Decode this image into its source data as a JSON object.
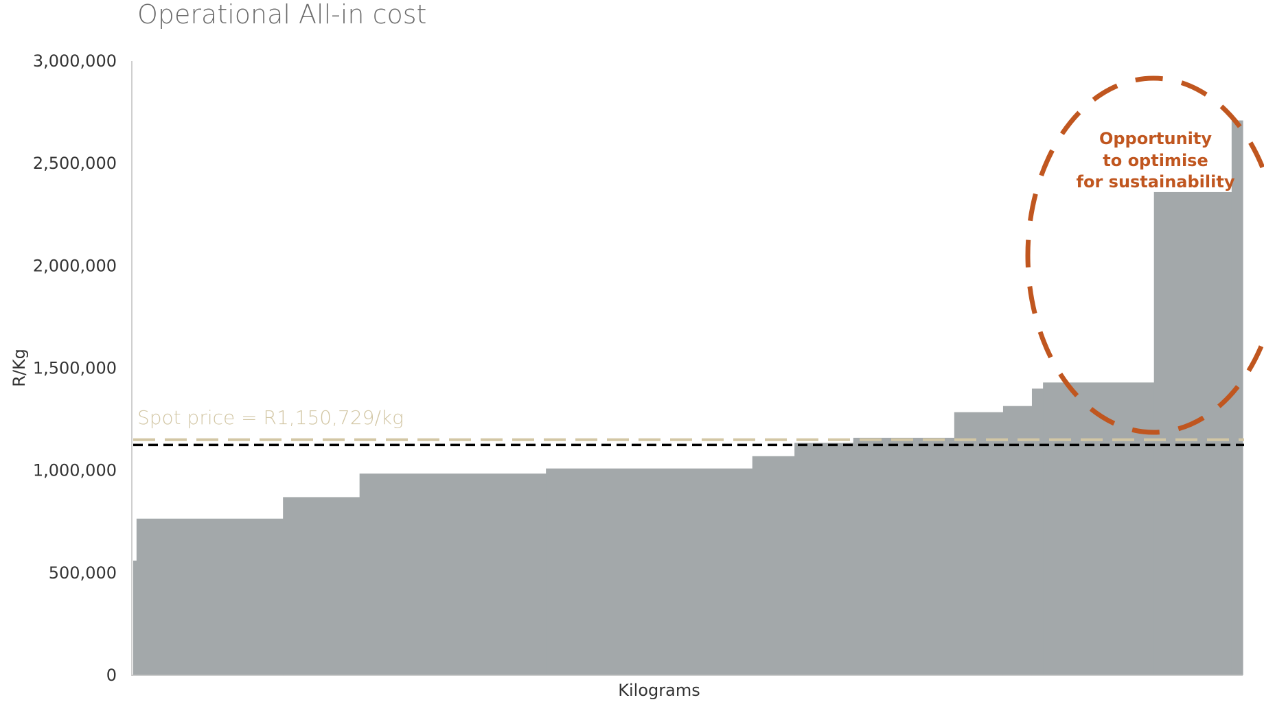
{
  "chart_data": {
    "type": "area",
    "title": "Operational All-in cost",
    "xlabel": "Kilograms",
    "ylabel": "R/Kg",
    "ylim": [
      0,
      3000000
    ],
    "xlim": [
      0,
      100
    ],
    "yticks": [
      "0",
      "500,000",
      "1,000,000",
      "1,500,000",
      "2,000,000",
      "2,500,000",
      "3,000,000"
    ],
    "ytick_values": [
      0,
      500000,
      1000000,
      1500000,
      2000000,
      2500000,
      3000000
    ],
    "grid": false,
    "series": [
      {
        "steps": [
          {
            "x0": 0.0,
            "x1": 0.3,
            "y": 560000
          },
          {
            "x0": 0.3,
            "x1": 13.5,
            "y": 765000
          },
          {
            "x0": 13.5,
            "x1": 20.4,
            "y": 870000
          },
          {
            "x0": 20.4,
            "x1": 37.2,
            "y": 985000
          },
          {
            "x0": 37.2,
            "x1": 55.8,
            "y": 1010000
          },
          {
            "x0": 55.8,
            "x1": 59.6,
            "y": 1070000
          },
          {
            "x0": 59.6,
            "x1": 64.9,
            "y": 1135000
          },
          {
            "x0": 64.9,
            "x1": 74.0,
            "y": 1160000
          },
          {
            "x0": 74.0,
            "x1": 78.4,
            "y": 1285000
          },
          {
            "x0": 78.4,
            "x1": 81.0,
            "y": 1315000
          },
          {
            "x0": 81.0,
            "x1": 82.0,
            "y": 1400000
          },
          {
            "x0": 82.0,
            "x1": 92.0,
            "y": 1430000
          },
          {
            "x0": 92.0,
            "x1": 99.0,
            "y": 2360000
          },
          {
            "x0": 99.0,
            "x1": 100.0,
            "y": 2710000
          }
        ],
        "color": "#a3a8aa"
      }
    ],
    "reference_lines": [
      {
        "label": "Spot price = R1,150,729/kg",
        "y": 1150729,
        "color": "#d2c6a4",
        "style": "dashed"
      },
      {
        "label": "",
        "y": 1125000,
        "color": "#000000",
        "style": "dashed"
      }
    ],
    "annotations": [
      {
        "lines": [
          "Opportunity",
          "to optimise",
          "for sustainability"
        ],
        "color": "#c0561f",
        "shape": "dashed-ellipse"
      }
    ]
  }
}
